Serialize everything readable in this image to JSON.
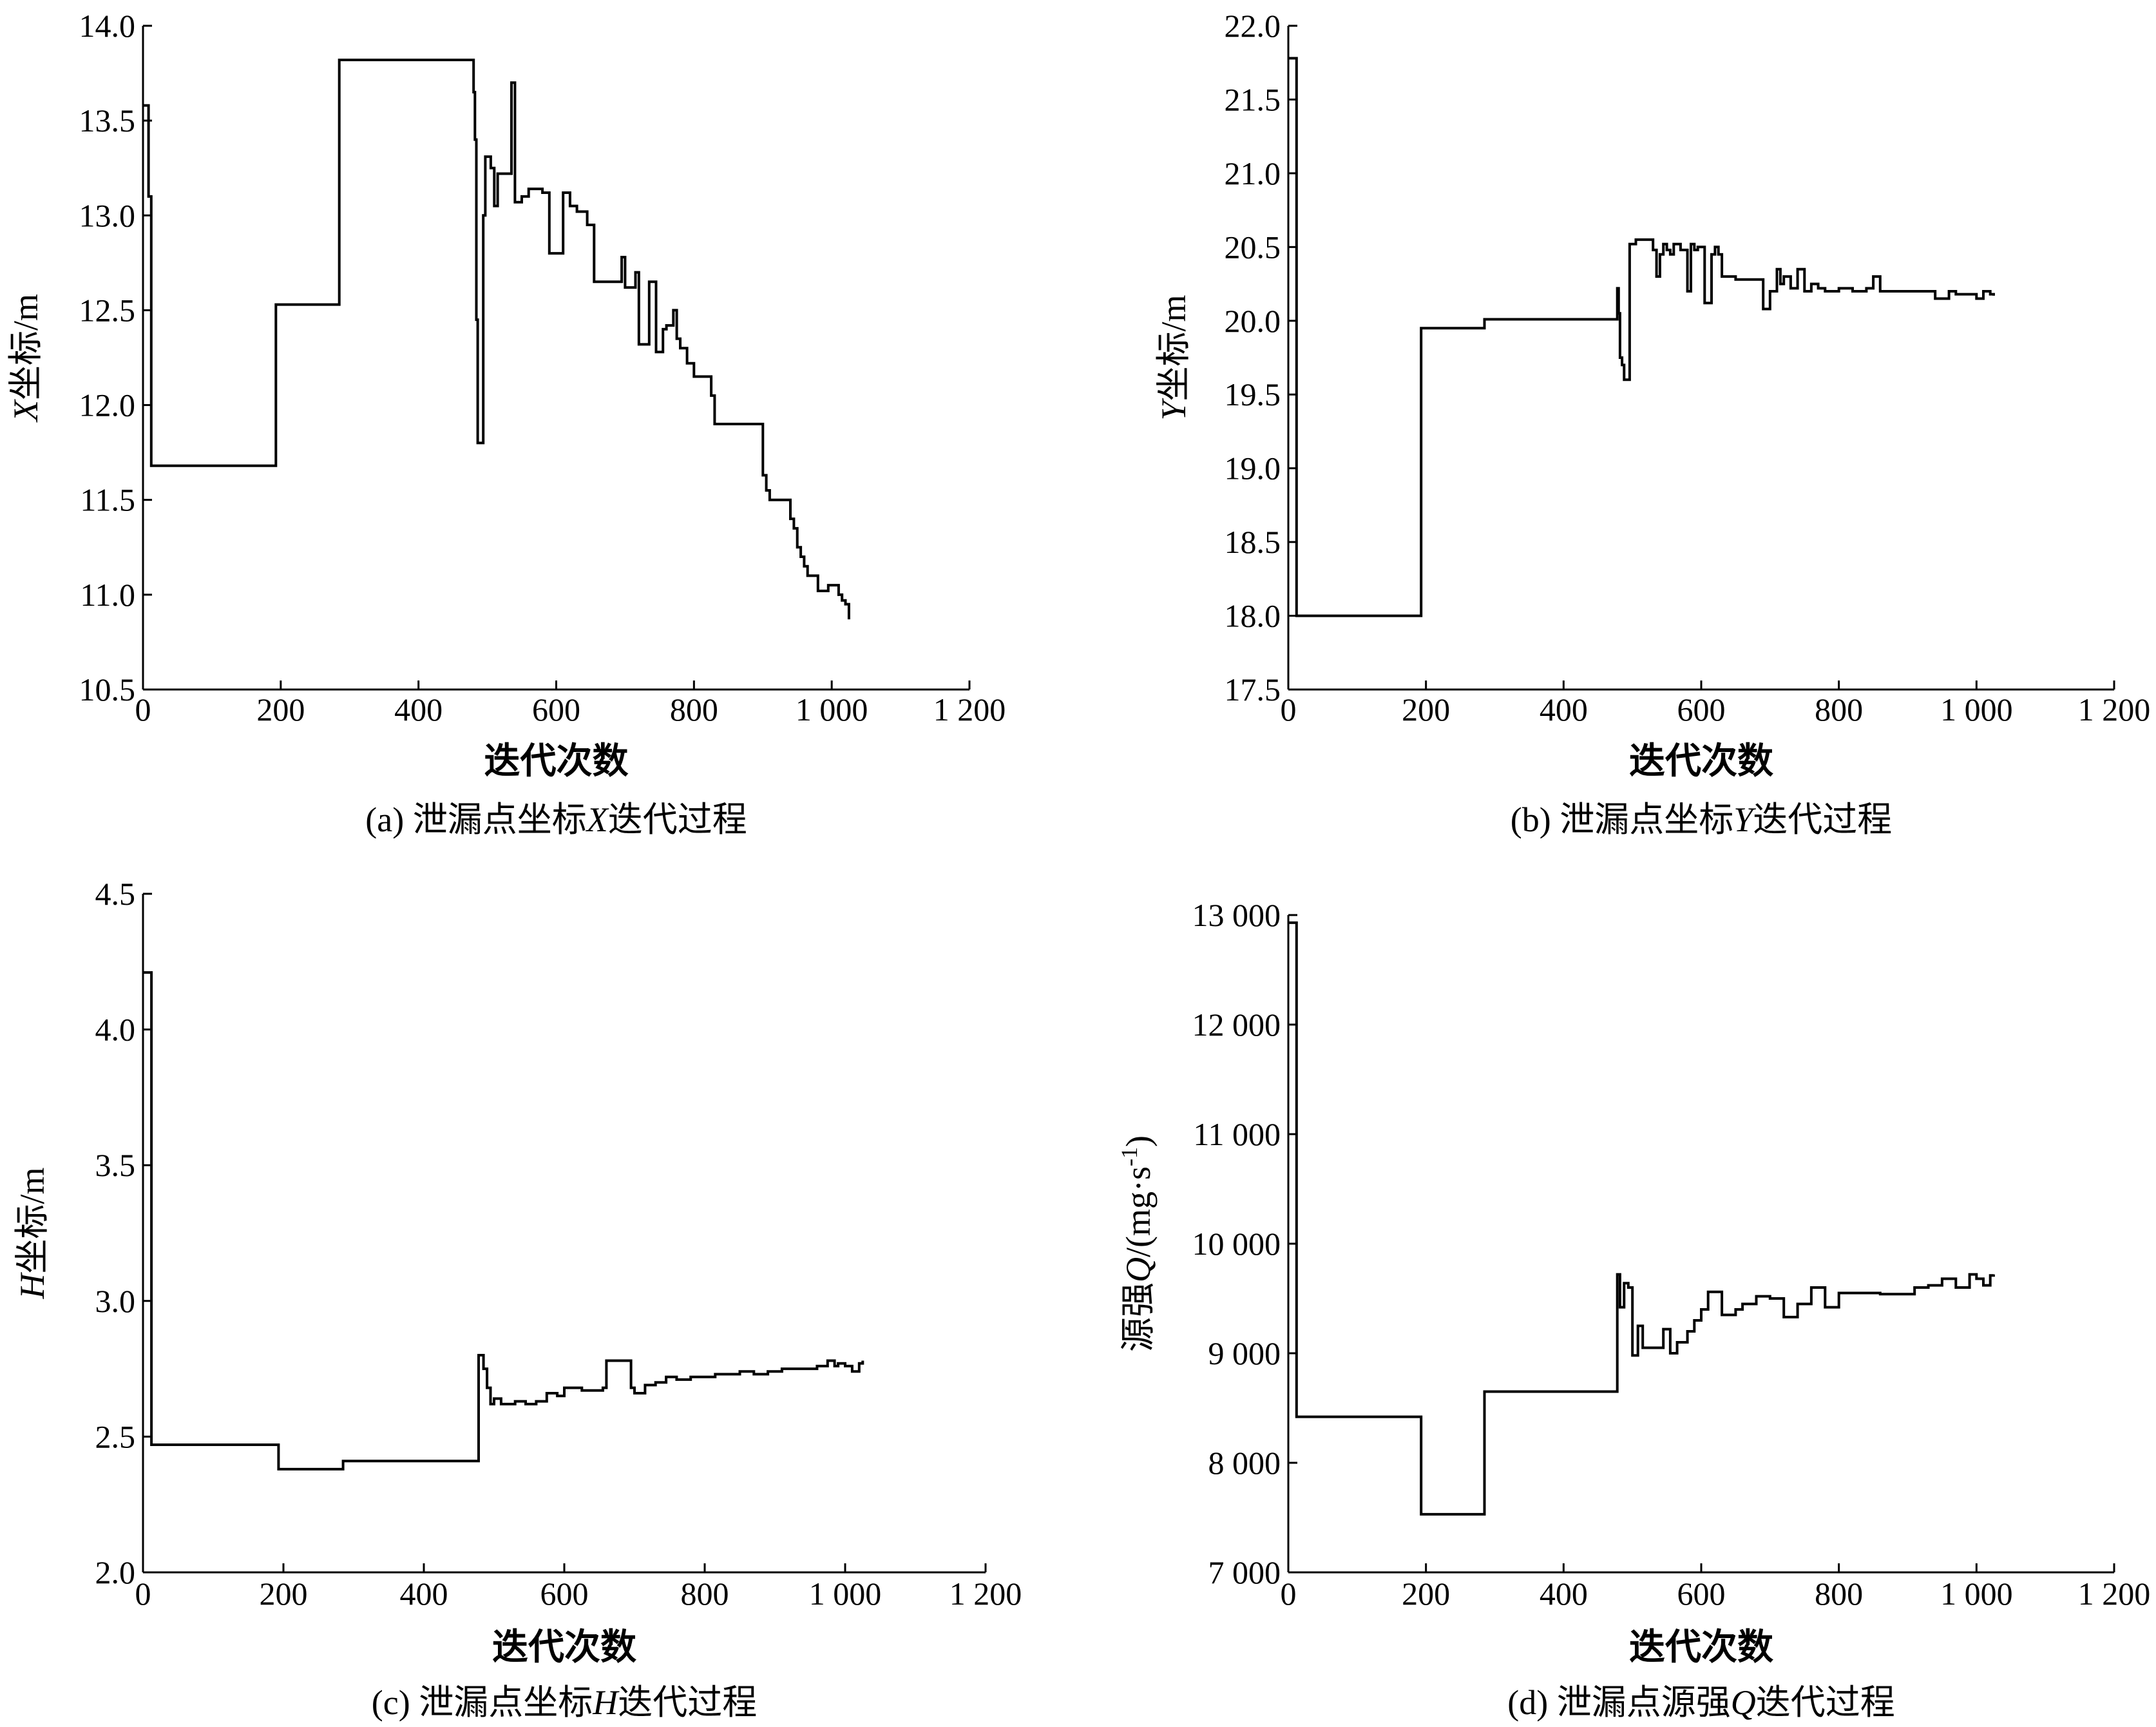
{
  "chart_data": [
    {
      "type": "line",
      "xlabel": "迭代次数",
      "ylabel_italic": "X",
      "ylabel_rest": "坐标/m",
      "caption_prefix": "(a)  泄漏点坐标",
      "caption_var": "X",
      "caption_suffix": "迭代过程",
      "xlim": [
        0,
        1200
      ],
      "ylim": [
        10.5,
        14.0
      ],
      "xticks": [
        0,
        200,
        400,
        600,
        800,
        1000,
        1200
      ],
      "xtick_labels": [
        "0",
        "200",
        "400",
        "600",
        "800",
        "1 000",
        "1 200"
      ],
      "yticks": [
        10.5,
        11.0,
        11.5,
        12.0,
        12.5,
        13.0,
        13.5,
        14.0
      ],
      "ytick_labels": [
        "10.5",
        "11.0",
        "11.5",
        "12.0",
        "12.5",
        "13.0",
        "13.5",
        "14.0"
      ],
      "x": [
        0,
        2,
        5,
        8,
        12,
        15,
        193,
        195,
        285,
        287,
        475,
        480,
        482,
        484,
        486,
        490,
        494,
        497,
        500,
        505,
        510,
        515,
        520,
        525,
        530,
        535,
        540,
        545,
        550,
        560,
        580,
        590,
        595,
        610,
        620,
        630,
        645,
        655,
        660,
        690,
        695,
        700,
        705,
        715,
        720,
        730,
        735,
        745,
        755,
        760,
        770,
        775,
        780,
        790,
        800,
        810,
        820,
        825,
        830,
        835,
        840,
        850,
        880,
        900,
        905,
        910,
        920,
        940,
        945,
        950,
        955,
        960,
        965,
        970,
        980,
        985,
        995,
        1000,
        1010,
        1015,
        1020,
        1025
      ],
      "y": [
        13.58,
        13.58,
        13.58,
        13.1,
        11.68,
        11.68,
        12.53,
        12.53,
        13.82,
        13.82,
        13.82,
        13.65,
        13.4,
        12.45,
        11.8,
        11.8,
        13.0,
        13.31,
        13.31,
        13.25,
        13.05,
        13.22,
        13.22,
        13.22,
        13.22,
        13.7,
        13.07,
        13.07,
        13.1,
        13.14,
        13.12,
        12.8,
        12.8,
        13.12,
        13.05,
        13.02,
        12.95,
        12.65,
        12.65,
        12.65,
        12.78,
        12.62,
        12.62,
        12.7,
        12.32,
        12.32,
        12.65,
        12.28,
        12.4,
        12.42,
        12.5,
        12.35,
        12.3,
        12.22,
        12.15,
        12.15,
        12.15,
        12.05,
        11.9,
        11.9,
        11.9,
        11.9,
        11.9,
        11.63,
        11.55,
        11.5,
        11.5,
        11.4,
        11.35,
        11.25,
        11.2,
        11.15,
        11.1,
        11.1,
        11.02,
        11.02,
        11.05,
        11.05,
        11.0,
        10.97,
        10.95,
        10.87
      ]
    },
    {
      "type": "line",
      "xlabel": "迭代次数",
      "ylabel_italic": "Y",
      "ylabel_rest": "坐标/m",
      "caption_prefix": "(b)  泄漏点坐标",
      "caption_var": "Y",
      "caption_suffix": "迭代过程",
      "xlim": [
        0,
        1200
      ],
      "ylim": [
        17.5,
        22.0
      ],
      "xticks": [
        0,
        200,
        400,
        600,
        800,
        1000,
        1200
      ],
      "xtick_labels": [
        "0",
        "200",
        "400",
        "600",
        "800",
        "1 000",
        "1 200"
      ],
      "yticks": [
        17.5,
        18.0,
        18.5,
        19.0,
        19.5,
        20.0,
        20.5,
        21.0,
        21.5,
        22.0
      ],
      "ytick_labels": [
        "17.5",
        "18.0",
        "18.5",
        "19.0",
        "19.5",
        "20.0",
        "20.5",
        "21.0",
        "21.5",
        "22.0"
      ],
      "x": [
        0,
        3,
        8,
        12,
        15,
        193,
        195,
        285,
        287,
        475,
        478,
        480,
        482,
        485,
        488,
        492,
        496,
        500,
        505,
        510,
        515,
        520,
        530,
        535,
        540,
        545,
        550,
        555,
        560,
        565,
        570,
        580,
        585,
        590,
        595,
        600,
        605,
        610,
        615,
        620,
        625,
        630,
        640,
        650,
        660,
        680,
        690,
        700,
        710,
        715,
        720,
        730,
        740,
        750,
        760,
        770,
        780,
        800,
        820,
        840,
        850,
        860,
        880,
        900,
        920,
        940,
        960,
        970,
        980,
        1000,
        1010,
        1020,
        1025
      ],
      "y": [
        21.78,
        21.78,
        21.78,
        18.0,
        18.0,
        19.95,
        19.95,
        20.01,
        20.01,
        20.01,
        20.22,
        20.05,
        19.75,
        19.7,
        19.6,
        19.6,
        20.52,
        20.52,
        20.55,
        20.55,
        20.55,
        20.55,
        20.48,
        20.3,
        20.45,
        20.52,
        20.48,
        20.45,
        20.52,
        20.52,
        20.48,
        20.2,
        20.52,
        20.48,
        20.5,
        20.5,
        20.12,
        20.12,
        20.45,
        20.5,
        20.45,
        20.3,
        20.3,
        20.28,
        20.28,
        20.28,
        20.08,
        20.2,
        20.35,
        20.25,
        20.3,
        20.22,
        20.35,
        20.2,
        20.25,
        20.22,
        20.2,
        20.22,
        20.2,
        20.22,
        20.3,
        20.2,
        20.2,
        20.2,
        20.2,
        20.15,
        20.2,
        20.18,
        20.18,
        20.15,
        20.2,
        20.18,
        20.17
      ]
    },
    {
      "type": "line",
      "xlabel": "迭代次数",
      "ylabel_italic": "H",
      "ylabel_rest": "坐标/m",
      "caption_prefix": "(c)  泄漏点坐标",
      "caption_var": "H",
      "caption_suffix": "迭代过程",
      "xlim": [
        0,
        1200
      ],
      "ylim": [
        2.0,
        4.5
      ],
      "xticks": [
        0,
        200,
        400,
        600,
        800,
        1000,
        1200
      ],
      "xtick_labels": [
        "0",
        "200",
        "400",
        "600",
        "800",
        "1 000",
        "1 200"
      ],
      "yticks": [
        2.0,
        2.5,
        3.0,
        3.5,
        4.0,
        4.5
      ],
      "ytick_labels": [
        "2.0",
        "2.5",
        "3.0",
        "3.5",
        "4.0",
        "4.5"
      ],
      "x": [
        0,
        3,
        8,
        12,
        15,
        193,
        195,
        285,
        287,
        478,
        482,
        485,
        490,
        495,
        500,
        510,
        520,
        530,
        545,
        560,
        575,
        590,
        600,
        610,
        625,
        640,
        655,
        660,
        695,
        700,
        715,
        730,
        745,
        760,
        780,
        800,
        815,
        830,
        850,
        870,
        890,
        910,
        940,
        960,
        975,
        985,
        990,
        1000,
        1010,
        1020,
        1025
      ],
      "y": [
        4.21,
        4.21,
        4.21,
        2.47,
        2.47,
        2.38,
        2.38,
        2.41,
        2.41,
        2.8,
        2.8,
        2.75,
        2.68,
        2.62,
        2.64,
        2.62,
        2.62,
        2.63,
        2.62,
        2.63,
        2.66,
        2.65,
        2.68,
        2.68,
        2.67,
        2.67,
        2.68,
        2.78,
        2.68,
        2.66,
        2.69,
        2.7,
        2.72,
        2.71,
        2.72,
        2.72,
        2.73,
        2.73,
        2.74,
        2.73,
        2.74,
        2.75,
        2.75,
        2.76,
        2.78,
        2.76,
        2.77,
        2.76,
        2.74,
        2.77,
        2.78
      ]
    },
    {
      "type": "line",
      "xlabel": "迭代次数",
      "ylabel_text": "源强",
      "ylabel_italic": "Q",
      "ylabel_rest": "/(mg·s",
      "ylabel_sup": "-1",
      "ylabel_end": ")",
      "caption_prefix": "(d)  泄漏点源强",
      "caption_var": "Q",
      "caption_suffix": "迭代过程",
      "xlim": [
        0,
        1200
      ],
      "ylim": [
        7000,
        13000
      ],
      "xticks": [
        0,
        200,
        400,
        600,
        800,
        1000,
        1200
      ],
      "xtick_labels": [
        "0",
        "200",
        "400",
        "600",
        "800",
        "1 000",
        "1 200"
      ],
      "yticks": [
        7000,
        8000,
        9000,
        10000,
        11000,
        12000,
        13000
      ],
      "ytick_labels": [
        "7 000",
        "8 000",
        "9 000",
        "10 000",
        "11 000",
        "12 000",
        "13 000"
      ],
      "x": [
        0,
        3,
        8,
        12,
        15,
        193,
        195,
        285,
        287,
        478,
        482,
        488,
        494,
        500,
        508,
        515,
        525,
        535,
        545,
        555,
        565,
        580,
        590,
        600,
        610,
        630,
        650,
        660,
        680,
        700,
        720,
        740,
        760,
        780,
        800,
        830,
        860,
        890,
        910,
        930,
        950,
        970,
        990,
        1000,
        1010,
        1020,
        1025
      ],
      "y": [
        12930,
        12930,
        12930,
        8420,
        8420,
        7530,
        7530,
        8650,
        8650,
        9720,
        9420,
        9640,
        9600,
        8980,
        9250,
        9050,
        9050,
        9050,
        9220,
        9000,
        9100,
        9200,
        9300,
        9400,
        9560,
        9350,
        9400,
        9450,
        9520,
        9500,
        9330,
        9450,
        9600,
        9420,
        9550,
        9550,
        9540,
        9540,
        9600,
        9620,
        9680,
        9600,
        9720,
        9680,
        9620,
        9710,
        9720
      ]
    }
  ]
}
